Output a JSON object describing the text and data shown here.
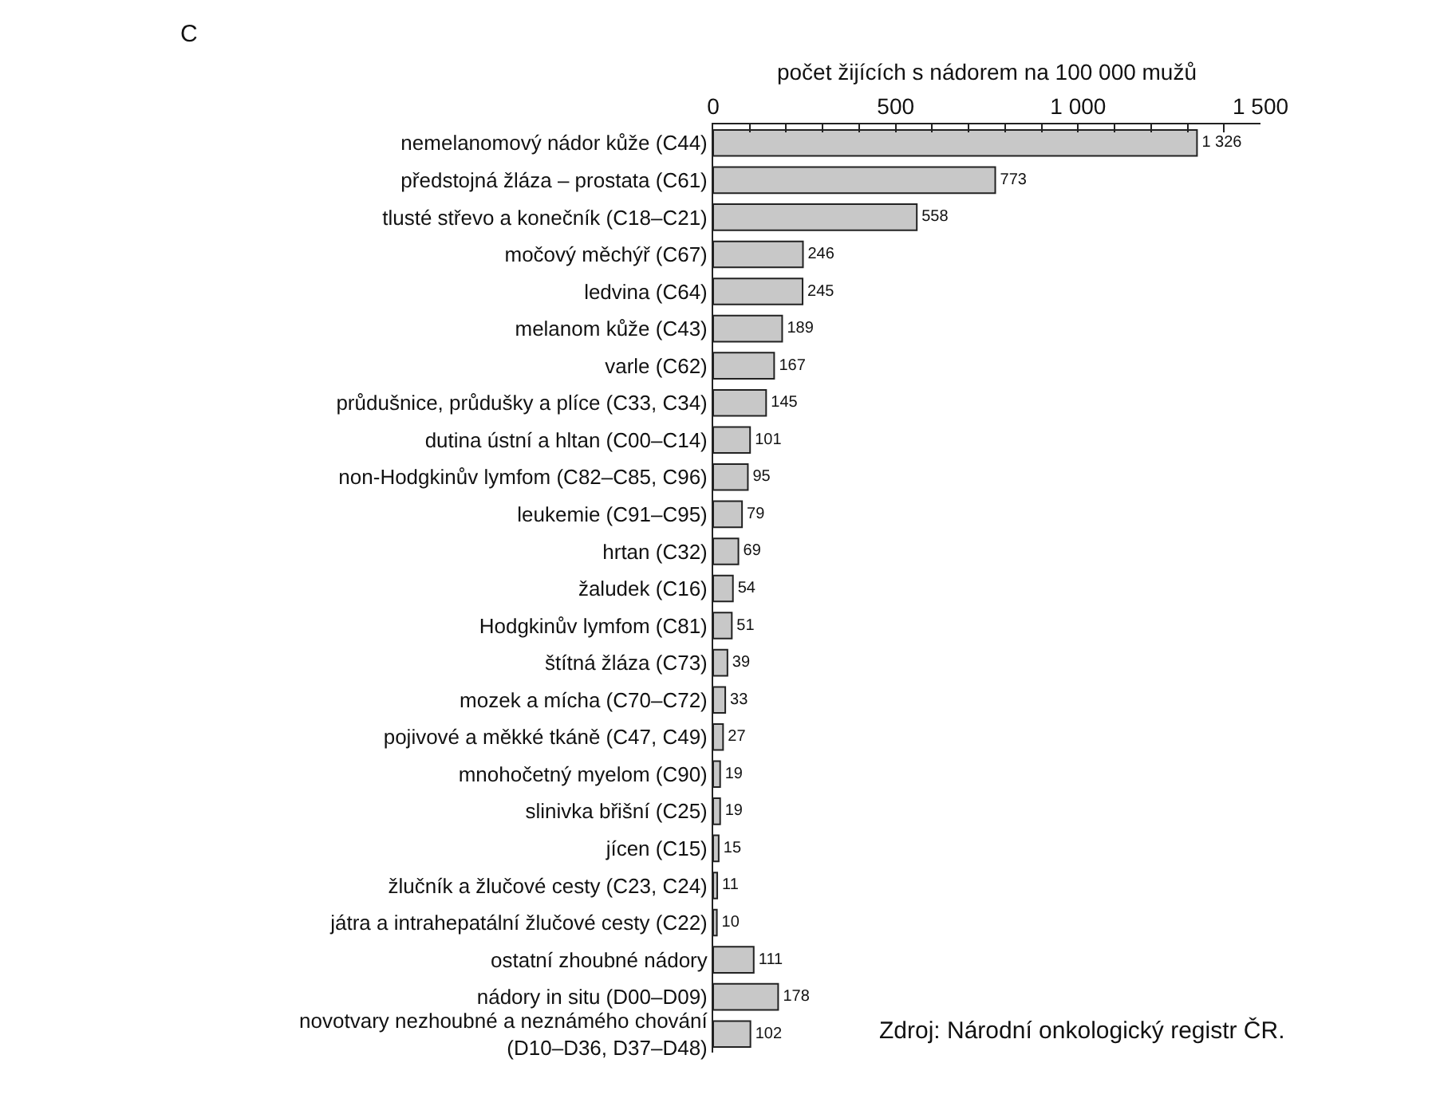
{
  "chart_data": {
    "type": "bar",
    "orientation": "horizontal",
    "xlabel": "počet žijících s nádorem na 100 000 mužů",
    "categories": [
      "nemelanomový nádor kůže (C44)",
      "předstojná žláza – prostata (C61)",
      "tlusté střevo a konečník (C18–C21)",
      "močový měchýř (C67)",
      "ledvina (C64)",
      "melanom kůže (C43)",
      "varle (C62)",
      "průdušnice, průdušky a plíce (C33, C34)",
      "dutina ústní a hltan (C00–C14)",
      "non-Hodgkinův lymfom (C82–C85, C96)",
      "leukemie (C91–C95)",
      "hrtan (C32)",
      "žaludek (C16)",
      "Hodgkinův lymfom (C81)",
      "štítná žláza (C73)",
      "mozek a mícha (C70–C72)",
      "pojivové a měkké tkáně (C47, C49)",
      "mnohočetný myelom (C90)",
      "slinivka břišní (C25)",
      "jícen (C15)",
      "žlučník a žlučové cesty (C23, C24)",
      "játra a intrahepatální žlučové cesty (C22)",
      "ostatní zhoubné nádory",
      "nádory in situ (D00–D09)",
      "novotvary nezhoubné a neznámého chování\n(D10–D36, D37–D48)"
    ],
    "values": [
      1326,
      773,
      558,
      246,
      245,
      189,
      167,
      145,
      101,
      95,
      79,
      69,
      54,
      51,
      39,
      33,
      27,
      19,
      19,
      15,
      11,
      10,
      111,
      178,
      102
    ],
    "value_labels": [
      "1 326",
      "773",
      "558",
      "246",
      "245",
      "189",
      "167",
      "145",
      "101",
      "95",
      "79",
      "69",
      "54",
      "51",
      "39",
      "33",
      "27",
      "19",
      "19",
      "15",
      "11",
      "10",
      "111",
      "178",
      "102"
    ],
    "color": "#c8c8c8",
    "xlim": [
      0,
      1500
    ],
    "xticks": [
      0,
      {
        "value": 100,
        "label": null
      },
      {
        "value": 200,
        "label": null
      },
      {
        "value": 300,
        "label": null
      },
      {
        "value": 400,
        "label": null
      },
      500,
      {
        "value": 600,
        "label": null
      },
      {
        "value": 700,
        "label": null
      },
      {
        "value": 800,
        "label": null
      },
      {
        "value": 900,
        "label": null
      },
      {
        "value": 1000,
        "label": "1 000"
      },
      {
        "value": 1100,
        "label": null
      },
      {
        "value": 1200,
        "label": null
      },
      {
        "value": 1300,
        "label": null
      },
      {
        "value": 1400,
        "label": null
      },
      {
        "value": 1500,
        "label": "1 500"
      }
    ],
    "grid": false,
    "legend": false,
    "annotations": [
      "C",
      "Zdroj: Národní onkologický registr ČR."
    ]
  }
}
